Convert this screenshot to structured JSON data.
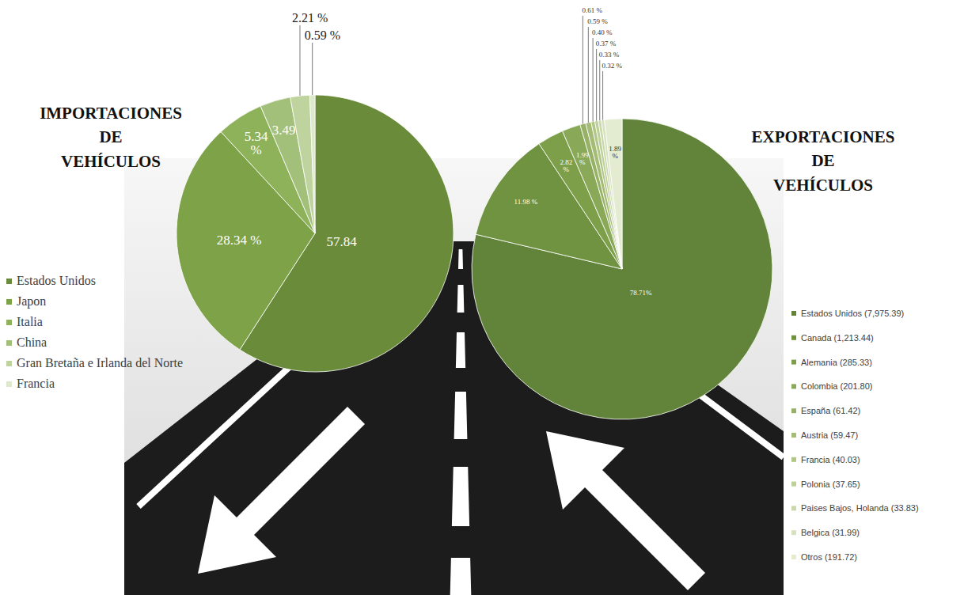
{
  "chart_data": [
    {
      "type": "pie",
      "title": "IMPORTACIONES DE VEHÍCULOS",
      "categories": [
        "Estados Unidos",
        "Japon",
        "Italia",
        "China",
        "Gran Bretaña e Irlanda del Norte",
        "Francia"
      ],
      "values": [
        57.84,
        28.34,
        5.34,
        3.49,
        2.21,
        0.59
      ],
      "value_labels": [
        "57.84",
        "28.34 %",
        "5.34 %",
        "3.49",
        "2.21 %",
        "0.59 %"
      ],
      "colors": [
        "#6a8c3a",
        "#7da247",
        "#8eb25a",
        "#a2c07a",
        "#bed39e",
        "#dde8cc"
      ],
      "data_labels": true,
      "legend": "left"
    },
    {
      "type": "pie",
      "title": "EXPORTACIONES DE VEHÍCULOS",
      "categories": [
        "Estados Unidos (7,975.39)",
        "Canada (1,213.44)",
        "Alemania (285.33)",
        "Colombia (201.80)",
        "España (61.42)",
        "Austria (59.47)",
        "Francia (40.03)",
        "Polonia (37.65)",
        "Paises Bajos, Holanda (33.83)",
        "Belgica (31.99)",
        "Otros (191.72)"
      ],
      "values": [
        78.71,
        11.98,
        2.82,
        1.99,
        0.61,
        0.59,
        0.4,
        0.37,
        0.33,
        0.32,
        1.89
      ],
      "value_labels": [
        "78.71%",
        "11.98 %",
        "2.82 %",
        "1.99 %",
        "0.61 %",
        "0.59 %",
        "0.40 %",
        "0.37 %",
        "0.33 %",
        "0.32 %",
        "1.89 %"
      ],
      "colors": [
        "#62843a",
        "#6f9340",
        "#7d9f4a",
        "#8aa958",
        "#97b266",
        "#a4bc76",
        "#b1c687",
        "#bdd098",
        "#c9d9aa",
        "#d6e2bd",
        "#e3ebd1"
      ],
      "data_labels": true,
      "legend": "right"
    }
  ]
}
